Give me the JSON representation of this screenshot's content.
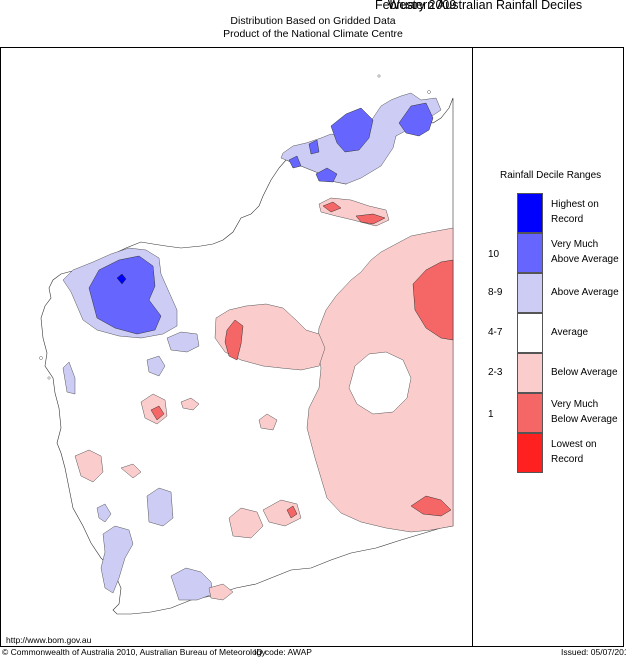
{
  "header": {
    "title": "Western Australian Rainfall Deciles",
    "month": "February 2009",
    "subtitle1": "Distribution Based on Gridded Data",
    "subtitle2": "Product of the National Climate Centre"
  },
  "legend": {
    "title": "Rainfall Decile Ranges",
    "items": [
      {
        "label": "Highest on Record",
        "code": "",
        "color": "#0000ff"
      },
      {
        "label": "Very Much Above Average",
        "code": "10",
        "color": "#6666ff"
      },
      {
        "label": "Above Average",
        "code": "8-9",
        "color": "#ccccf5"
      },
      {
        "label": "Average",
        "code": "4-7",
        "color": "#ffffff"
      },
      {
        "label": "Below Average",
        "code": "2-3",
        "color": "#fbcccc"
      },
      {
        "label": "Very Much Below Average",
        "code": "1",
        "color": "#f56666"
      },
      {
        "label": "Lowest on Record",
        "code": "",
        "color": "#ff2020"
      }
    ]
  },
  "footer": {
    "url": "http://www.bom.gov.au",
    "copyright": "© Commonwealth of Australia 2010, Australian Bureau of Meteorology",
    "id_code": "ID code: AWAP",
    "issued": "Issued: 05/07/2010"
  }
}
